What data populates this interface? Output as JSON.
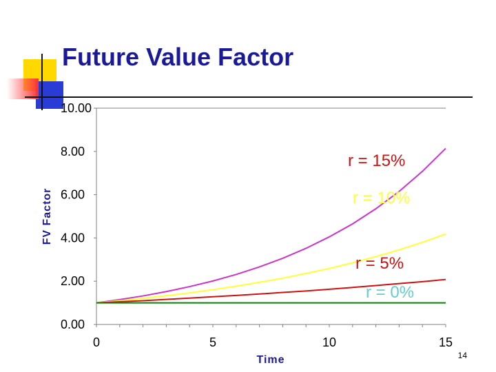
{
  "slide": {
    "title": "Future Value Factor",
    "page_number": "14"
  },
  "colors": {
    "title": "#1a1a99",
    "accent_yellow": "#ffd800",
    "accent_blue": "#2a3cd6",
    "accent_red": "#ff3333"
  },
  "chart_data": {
    "type": "line",
    "title": "",
    "xlabel": "Time",
    "ylabel": "FV Factor",
    "xlim": [
      0,
      15
    ],
    "ylim": [
      0,
      10
    ],
    "x_ticks": [
      "0",
      "5",
      "10",
      "15"
    ],
    "x_tick_values": [
      0,
      5,
      10,
      15
    ],
    "y_ticks": [
      "0.00",
      "2.00",
      "4.00",
      "6.00",
      "8.00",
      "10.00"
    ],
    "y_tick_values": [
      0,
      2,
      4,
      6,
      8,
      10
    ],
    "grid": false,
    "x": [
      0,
      1,
      2,
      3,
      4,
      5,
      6,
      7,
      8,
      9,
      10,
      11,
      12,
      13,
      14,
      15
    ],
    "series": [
      {
        "name": "r = 15%",
        "color": "#cc33cc",
        "values": [
          1.0,
          1.15,
          1.32,
          1.52,
          1.75,
          2.01,
          2.31,
          2.66,
          3.06,
          3.52,
          4.05,
          4.65,
          5.35,
          6.15,
          7.08,
          8.14
        ]
      },
      {
        "name": "r = 10%",
        "color": "#ffff33",
        "values": [
          1.0,
          1.1,
          1.21,
          1.33,
          1.46,
          1.61,
          1.77,
          1.95,
          2.14,
          2.36,
          2.59,
          2.85,
          3.14,
          3.45,
          3.8,
          4.18
        ]
      },
      {
        "name": "r = 5%",
        "color": "#cc1111",
        "values": [
          1.0,
          1.05,
          1.1,
          1.16,
          1.22,
          1.28,
          1.34,
          1.41,
          1.48,
          1.55,
          1.63,
          1.71,
          1.8,
          1.89,
          1.98,
          2.08
        ]
      },
      {
        "name": "r = 0%",
        "color": "#008800",
        "values": [
          1.0,
          1.0,
          1.0,
          1.0,
          1.0,
          1.0,
          1.0,
          1.0,
          1.0,
          1.0,
          1.0,
          1.0,
          1.0,
          1.0,
          1.0,
          1.0
        ]
      }
    ],
    "label_colors": [
      "#cc1111",
      "#ffff33",
      "#cc1111",
      "#66cccc"
    ]
  }
}
